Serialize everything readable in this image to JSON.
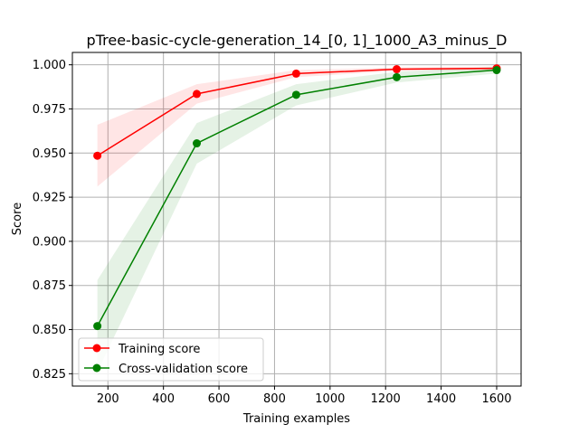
{
  "chart_data": {
    "type": "line",
    "title": "pTree-basic-cycle-generation_14_[0, 1]_1000_A3_minus_D",
    "xlabel": "Training examples",
    "ylabel": "Score",
    "xlim": [
      72,
      1688
    ],
    "ylim": [
      0.818,
      1.007
    ],
    "x": [
      162,
      520,
      878,
      1240,
      1600
    ],
    "xticks": [
      200,
      400,
      600,
      800,
      1000,
      1200,
      1400,
      1600
    ],
    "yticks": [
      0.825,
      0.85,
      0.875,
      0.9,
      0.925,
      0.95,
      0.975,
      1.0
    ],
    "ytick_labels": [
      "0.825",
      "0.850",
      "0.875",
      "0.900",
      "0.925",
      "0.950",
      "0.975",
      "1.000"
    ],
    "grid": true,
    "legend_position": "lower-left",
    "series": [
      {
        "name": "Training score",
        "color": "#ff0000",
        "values": [
          0.9485,
          0.9835,
          0.995,
          0.9975,
          0.998
        ],
        "band_lower": [
          0.931,
          0.978,
          0.993,
          0.9965,
          0.997
        ],
        "band_upper": [
          0.966,
          0.989,
          0.997,
          0.9985,
          0.999
        ]
      },
      {
        "name": "Cross-validation score",
        "color": "#008000",
        "values": [
          0.852,
          0.9555,
          0.983,
          0.993,
          0.997
        ],
        "band_lower": [
          0.826,
          0.944,
          0.977,
          0.99,
          0.995
        ],
        "band_upper": [
          0.878,
          0.967,
          0.989,
          0.996,
          0.999
        ]
      }
    ]
  }
}
